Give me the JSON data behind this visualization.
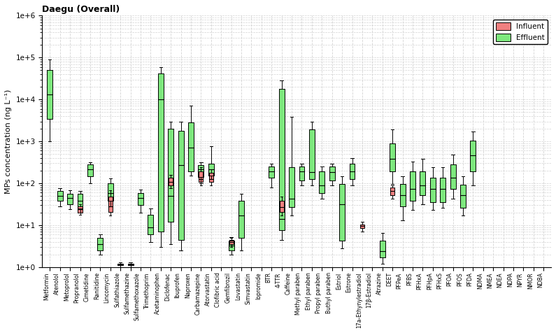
{
  "title": "Daegu (Overall)",
  "ylabel": "MPs concentration (ng L⁻¹)",
  "ylim_log": [
    1.0,
    1000000.0
  ],
  "influent_color": "#f08080",
  "effluent_color": "#7ee87e",
  "edge_color": "#333333",
  "categories": [
    "Metformin",
    "Atenolol",
    "Metoprolol",
    "Propranolol",
    "Cimetidine",
    "Ranitidine",
    "Lincomycin",
    "Sulfathiazole",
    "Sulfamethazine",
    "Sulfamethoxazole",
    "Trimethoprim",
    "Acetaminophen",
    "Diclofenac",
    "Ibuprofen",
    "Naproxen",
    "Carbamazepine",
    "Atorvastatin",
    "Clofibric acid",
    "Gemfibrozil",
    "Lovastatin",
    "Simvastatin",
    "Iopromide",
    "BTR",
    "4-TTR",
    "Caffeine",
    "Methyl paraben",
    "Ethyl paraben",
    "Propyl paraben",
    "Buthyl paraben",
    "Estriol",
    "Estrone",
    "17a-Ethynylestradiol",
    "17β-Estradiol",
    "Atrazine",
    "DEET",
    "PFPeA",
    "PFBS",
    "PFHxA",
    "PFHpA",
    "PFHxS",
    "PFOA",
    "PFOS",
    "PFDA",
    "NDMA",
    "NMEA",
    "NDEA",
    "NDPA",
    "NPYR",
    "NMOR",
    "NDBA"
  ],
  "box_data": {
    "Metformin": {
      "inf": null,
      "eff": [
        1000,
        3500,
        13000,
        50000,
        90000
      ]
    },
    "Atenolol": {
      "inf": null,
      "eff": [
        28,
        38,
        50,
        65,
        75
      ]
    },
    "Metoprolol": {
      "inf": null,
      "eff": [
        24,
        32,
        45,
        57,
        68
      ]
    },
    "Propranolol": {
      "inf": [
        18,
        20,
        24,
        28,
        32
      ],
      "eff": [
        20,
        25,
        38,
        55,
        65
      ]
    },
    "Cimetidine": {
      "inf": null,
      "eff": [
        100,
        145,
        215,
        280,
        320
      ]
    },
    "Ranitidine": {
      "inf": null,
      "eff": [
        2.0,
        2.5,
        3.5,
        5.0,
        6.0
      ]
    },
    "Lincomycin": {
      "inf": [
        17,
        21,
        28,
        48,
        68
      ],
      "eff": [
        28,
        38,
        58,
        100,
        130
      ]
    },
    "Sulfathiazole": {
      "inf": null,
      "eff": [
        1.0,
        1.1,
        1.15,
        1.2,
        1.3
      ]
    },
    "Sulfamethazine": {
      "inf": null,
      "eff": [
        1.0,
        1.1,
        1.15,
        1.2,
        1.3
      ]
    },
    "Sulfamethoxazole": {
      "inf": null,
      "eff": [
        20,
        30,
        45,
        58,
        70
      ]
    },
    "Trimethoprim": {
      "inf": null,
      "eff": [
        4,
        6,
        9,
        18,
        25
      ]
    },
    "Acetaminophen": {
      "inf": null,
      "eff": [
        3,
        7,
        10000,
        42000,
        60000
      ]
    },
    "Diclofenac": {
      "inf": [
        75,
        88,
        108,
        138,
        160
      ],
      "eff": [
        3.5,
        12,
        50,
        2000,
        3000
      ]
    },
    "Ibuprofen": {
      "inf": null,
      "eff": [
        2.5,
        4.5,
        270,
        1800,
        3000
      ]
    },
    "Naproxen": {
      "inf": null,
      "eff": [
        150,
        195,
        720,
        2800,
        7000
      ]
    },
    "Carbamazepine": {
      "inf": [
        90,
        108,
        128,
        195,
        238
      ],
      "eff": [
        98,
        142,
        215,
        275,
        320
      ]
    },
    "Atorvastatin": {
      "inf": [
        88,
        108,
        128,
        178,
        218
      ],
      "eff": [
        128,
        152,
        215,
        295,
        780
      ]
    },
    "Clofibric acid": {
      "inf": null,
      "eff": null
    },
    "Gemfibrozil": {
      "inf": [
        3.0,
        3.5,
        4.0,
        4.5,
        5.0
      ],
      "eff": [
        2.0,
        2.5,
        3.3,
        4.2,
        5.2
      ]
    },
    "Lovastatin": {
      "inf": null,
      "eff": [
        2.5,
        5.0,
        17,
        38,
        55
      ]
    },
    "Simvastatin": {
      "inf": null,
      "eff": null
    },
    "Iopromide": {
      "inf": null,
      "eff": null
    },
    "BTR": {
      "inf": null,
      "eff": [
        80,
        135,
        195,
        248,
        295
      ]
    },
    "4-TTR": {
      "inf": [
        17,
        21,
        27,
        38,
        48
      ],
      "eff": [
        4.5,
        7.5,
        14,
        18000,
        28000
      ]
    },
    "Caffeine": {
      "inf": null,
      "eff": [
        17,
        27,
        42,
        240,
        3800
      ]
    },
    "Methyl paraben": {
      "inf": null,
      "eff": [
        88,
        118,
        195,
        248,
        295
      ]
    },
    "Ethyl paraben": {
      "inf": null,
      "eff": [
        88,
        128,
        188,
        1900,
        2900
      ]
    },
    "Propyl paraben": {
      "inf": null,
      "eff": [
        42,
        58,
        88,
        195,
        248
      ]
    },
    "Buthyl paraben": {
      "inf": null,
      "eff": [
        88,
        118,
        188,
        248,
        295
      ]
    },
    "Estriol": {
      "inf": null,
      "eff": [
        2.8,
        4.2,
        32,
        95,
        148
      ]
    },
    "Estrone": {
      "inf": null,
      "eff": [
        88,
        128,
        195,
        295,
        395
      ]
    },
    "17a-Ethynylestradiol": {
      "inf": [
        7,
        8.5,
        9.5,
        10.5,
        12
      ],
      "eff": null
    },
    "17β-Estradiol": {
      "inf": null,
      "eff": null
    },
    "Atrazine": {
      "inf": null,
      "eff": [
        1.2,
        1.7,
        2.4,
        4.3,
        6.5
      ]
    },
    "DEET": {
      "inf": [
        43,
        52,
        65,
        78,
        90
      ],
      "eff": [
        95,
        195,
        385,
        880,
        1900
      ]
    },
    "PFPeA": {
      "inf": null,
      "eff": [
        13,
        28,
        52,
        95,
        145
      ]
    },
    "PFBS": {
      "inf": null,
      "eff": [
        23,
        38,
        72,
        190,
        325
      ]
    },
    "PFHxA": {
      "inf": null,
      "eff": [
        32,
        52,
        88,
        195,
        390
      ]
    },
    "PFHpA": {
      "inf": null,
      "eff": [
        23,
        36,
        72,
        135,
        245
      ]
    },
    "PFHxS": {
      "inf": null,
      "eff": [
        26,
        36,
        72,
        135,
        245
      ]
    },
    "PFOA": {
      "inf": null,
      "eff": [
        42,
        72,
        135,
        280,
        490
      ]
    },
    "PFOS": {
      "inf": null,
      "eff": [
        17,
        26,
        52,
        92,
        145
      ]
    },
    "PFDA": {
      "inf": null,
      "eff": [
        88,
        195,
        465,
        1050,
        1750
      ]
    },
    "NDMA": {
      "inf": null,
      "eff": null
    },
    "NMEA": {
      "inf": null,
      "eff": null
    },
    "NDEA": {
      "inf": null,
      "eff": null
    },
    "NDPA": {
      "inf": null,
      "eff": null
    },
    "NPYR": {
      "inf": null,
      "eff": null
    },
    "NMOR": {
      "inf": null,
      "eff": null
    },
    "NDBA": {
      "inf": null,
      "eff": null
    }
  }
}
